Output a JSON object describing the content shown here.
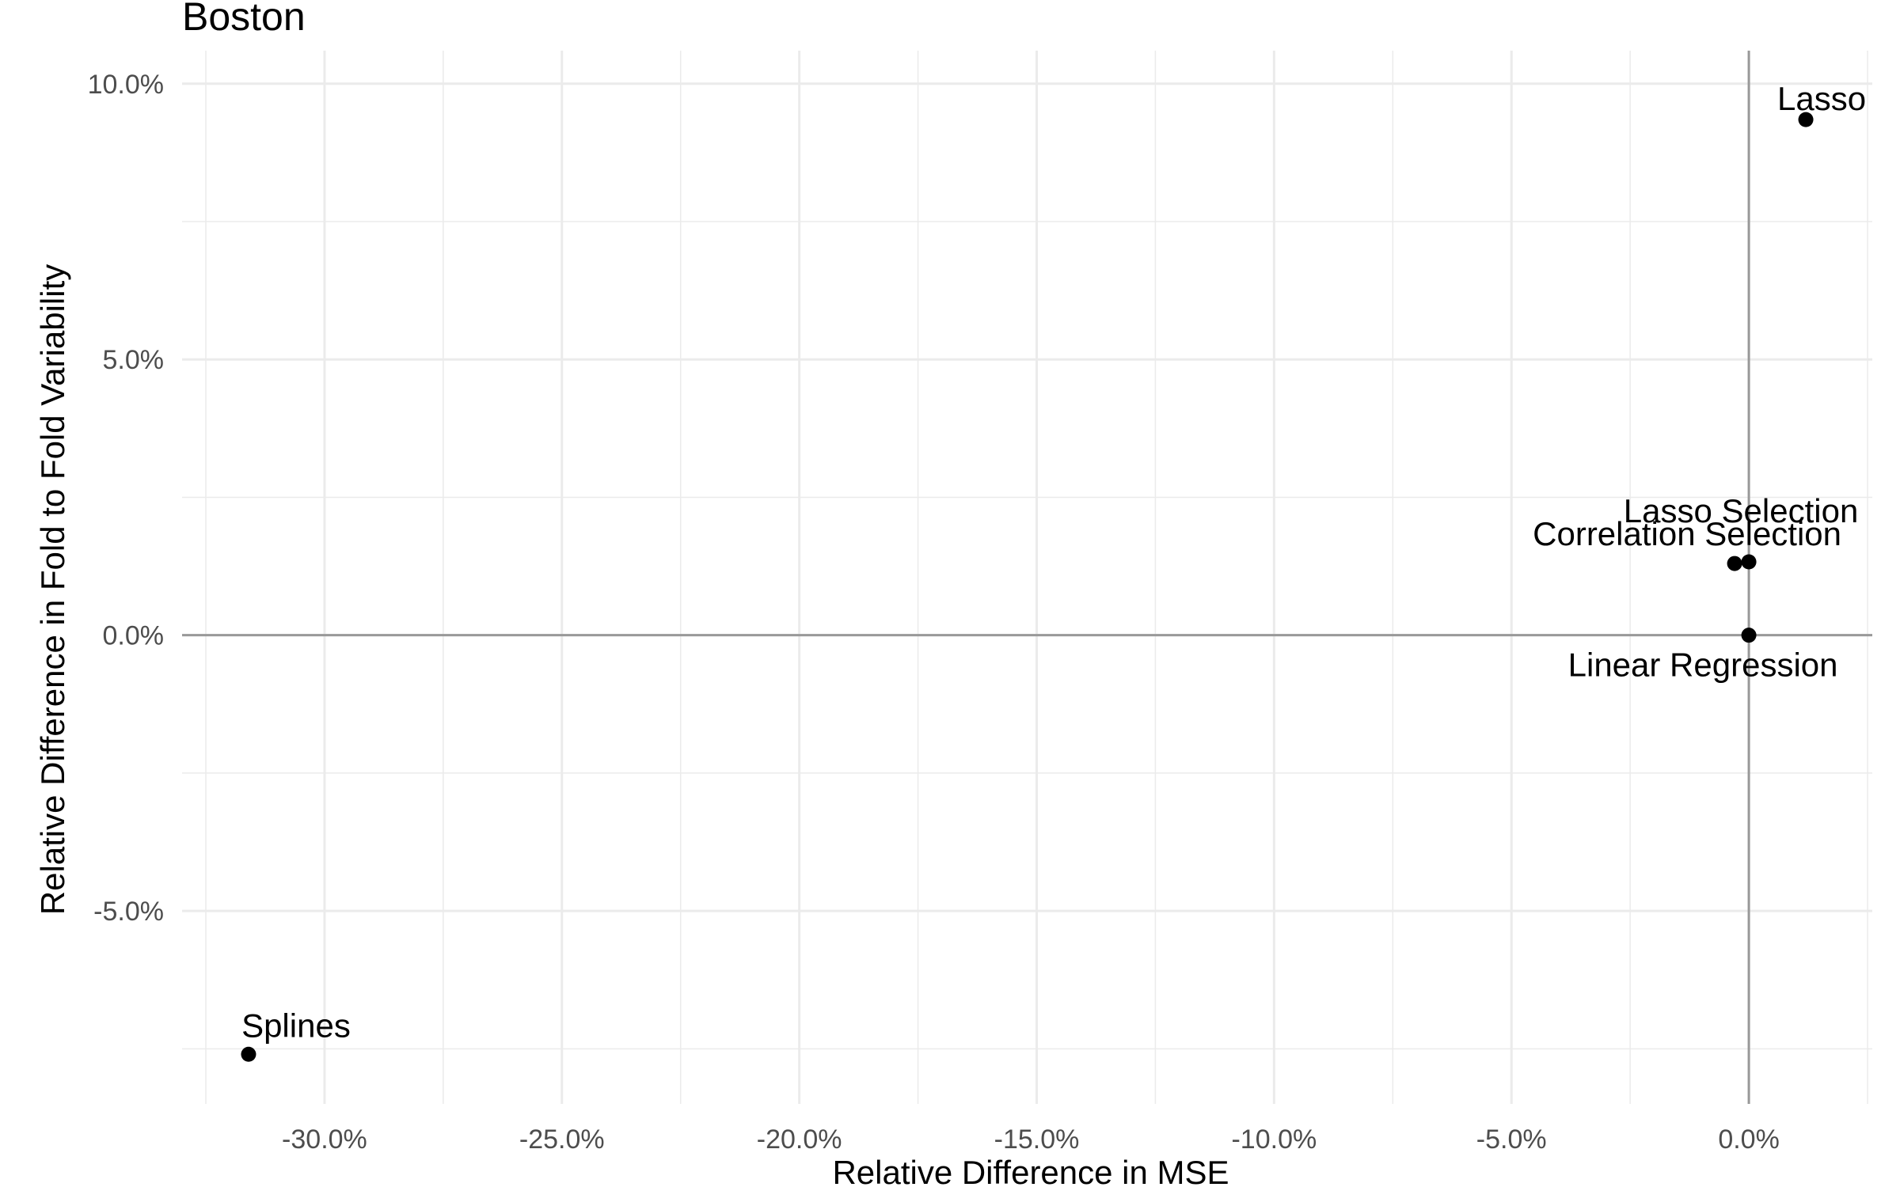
{
  "chart_data": {
    "type": "scatter",
    "title": "Boston",
    "xlabel": "Relative Difference in MSE",
    "ylabel": "Relative Difference in Fold to Fold Variability",
    "xlim": [
      -33.0,
      2.6
    ],
    "ylim": [
      -8.5,
      10.6
    ],
    "x_ticks": [
      -30,
      -25,
      -20,
      -15,
      -10,
      -5,
      0
    ],
    "x_tick_labels": [
      "-30.0%",
      "-25.0%",
      "-20.0%",
      "-15.0%",
      "-10.0%",
      "-5.0%",
      "0.0%"
    ],
    "y_ticks": [
      -5,
      0,
      5,
      10
    ],
    "y_tick_labels": [
      "-5.0%",
      "0.0%",
      "5.0%",
      "10.0%"
    ],
    "grid": true,
    "reference_lines": {
      "x": 0,
      "y": 0
    },
    "points": [
      {
        "label": "Lasso",
        "x": 1.2,
        "y": 9.35
      },
      {
        "label": "Correlation Selection",
        "x": -0.3,
        "y": 1.3
      },
      {
        "label": "Lasso Selection",
        "x": 0.0,
        "y": 1.33
      },
      {
        "label": "Linear Regression",
        "x": 0.0,
        "y": 0.0
      },
      {
        "label": "Splines",
        "x": -31.6,
        "y": -7.6
      }
    ]
  }
}
